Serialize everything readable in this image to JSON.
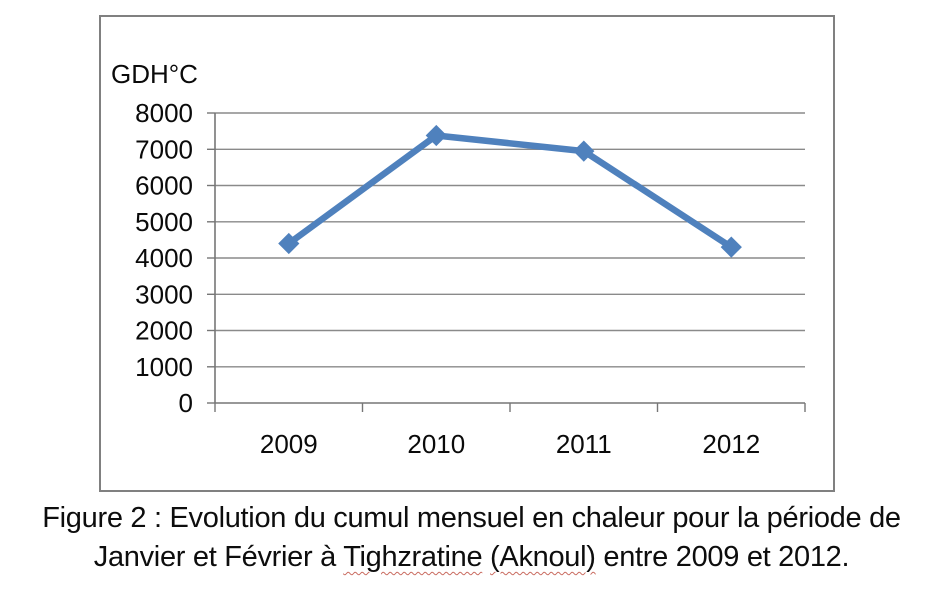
{
  "chart_data": {
    "type": "line",
    "title": "",
    "xlabel": "",
    "ylabel": "GDH°C",
    "categories": [
      "2009",
      "2010",
      "2011",
      "2012"
    ],
    "series": [
      {
        "name": "GDH",
        "values": [
          4400,
          7380,
          6950,
          4300
        ]
      }
    ],
    "ylim": [
      0,
      8000
    ],
    "ytick_step": 1000,
    "yticks": [
      0,
      1000,
      2000,
      3000,
      4000,
      5000,
      6000,
      7000,
      8000
    ],
    "grid": true,
    "legend_position": "none",
    "marker": "diamond",
    "line_color": "#4F81BD",
    "grid_color": "#8a8a8a",
    "axis_color": "#767676",
    "border_color": "#808080",
    "tick_label_color": "#0a0a0a"
  },
  "caption": {
    "line1": "Figure 2 : Evolution du cumul mensuel en chaleur pour la période de",
    "line2": {
      "prefix": "Janvier et Février à ",
      "word1": "Tighzratine",
      "mid": " ",
      "word2": "(Aknoul)",
      "suffix": " entre 2009 et 2012."
    },
    "spellcheck_color": "#c96a5f"
  }
}
